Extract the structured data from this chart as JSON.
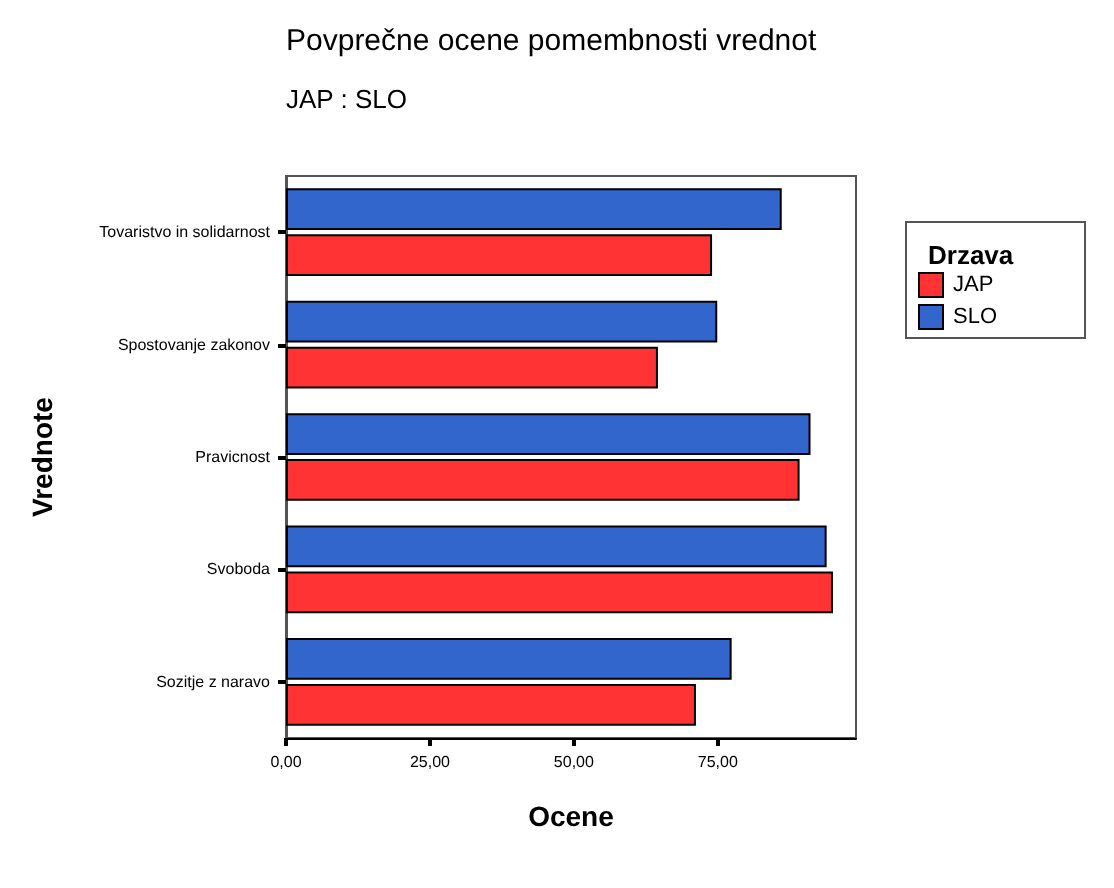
{
  "chart_data": {
    "type": "bar",
    "orientation": "horizontal",
    "title": "Povprečne ocene pomembnosti vrednot",
    "subtitle": "JAP : SLO",
    "xlabel": "Ocene",
    "ylabel": "Vrednote",
    "legend_title": "Drzava",
    "legend": "top right",
    "grid": false,
    "categories": [
      "Tovaristvo in solidarnost",
      "Spostovanje zakonov",
      "Pravicnost",
      "Svoboda",
      "Sozitje z naravo"
    ],
    "series": [
      {
        "name": "JAP",
        "color": "#ff3333",
        "values": [
          74.0,
          64.6,
          89.2,
          95.0,
          71.2
        ]
      },
      {
        "name": "SLO",
        "color": "#3366cc",
        "values": [
          86.1,
          74.9,
          91.1,
          93.9,
          77.4
        ]
      }
    ],
    "xlim": [
      0,
      99
    ],
    "xticks": [
      {
        "value": 0,
        "label": "0,00"
      },
      {
        "value": 25,
        "label": "25,00"
      },
      {
        "value": 50,
        "label": "50,00"
      },
      {
        "value": 75,
        "label": "75,00"
      }
    ]
  }
}
